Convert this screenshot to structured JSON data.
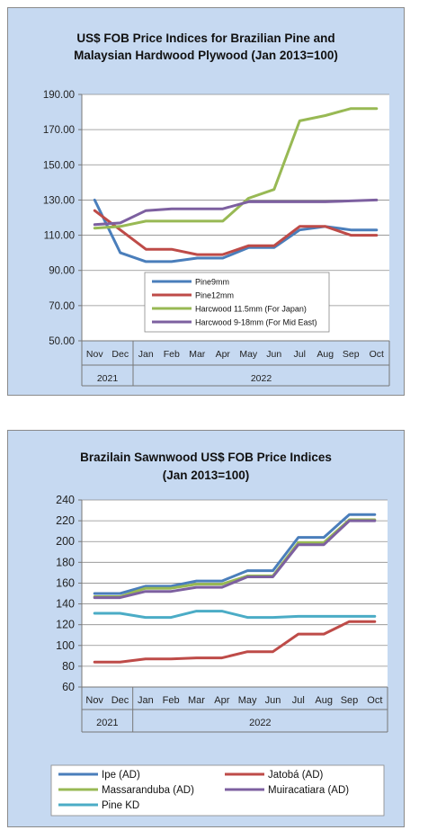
{
  "chart_data": [
    {
      "type": "line",
      "title_line1": "US$ FOB Price Indices for Brazilian Pine and",
      "title_line2": "Malaysian Hardwood Plywood (Jan 2013=100)",
      "ylim": [
        50,
        190
      ],
      "yticks": [
        "50.00",
        "70.00",
        "90.00",
        "110.00",
        "130.00",
        "150.00",
        "170.00",
        "190.00"
      ],
      "categories": [
        "Nov",
        "Dec",
        "Jan",
        "Feb",
        "Mar",
        "Apr",
        "May",
        "Jun",
        "Jul",
        "Aug",
        "Sep",
        "Oct"
      ],
      "year_groups": [
        {
          "label": "2021",
          "span": 2
        },
        {
          "label": "2022",
          "span": 10
        }
      ],
      "grid": "horizontal",
      "legend_position": "lower-center-inside",
      "series": [
        {
          "name": "Pine9mm",
          "color": "#4a7ebb",
          "values": [
            130,
            100,
            95,
            95,
            97,
            97,
            103,
            103,
            113,
            115,
            113,
            113
          ]
        },
        {
          "name": "Pine12mm",
          "color": "#be4b48",
          "values": [
            124,
            113,
            102,
            102,
            99,
            99,
            104,
            104,
            115,
            115,
            110,
            110
          ]
        },
        {
          "name": "Harcwood 11.5mm (For Japan)",
          "color": "#98b954",
          "values": [
            114,
            115,
            118,
            118,
            118,
            118,
            131,
            136,
            175,
            178,
            182,
            182
          ]
        },
        {
          "name": "Harcwood 9-18mm (For Mid East)",
          "color": "#7d60a0",
          "values": [
            116,
            117,
            124,
            125,
            125,
            125,
            129,
            129,
            129,
            129,
            129.5,
            130
          ]
        }
      ]
    },
    {
      "type": "line",
      "title_line1": "Brazilain Sawnwood US$ FOB Price Indices",
      "title_line2": "(Jan 2013=100)",
      "ylim": [
        60,
        240
      ],
      "yticks": [
        "60",
        "80",
        "100",
        "120",
        "140",
        "160",
        "180",
        "200",
        "220",
        "240"
      ],
      "categories": [
        "Nov",
        "Dec",
        "Jan",
        "Feb",
        "Mar",
        "Apr",
        "May",
        "Jun",
        "Jul",
        "Aug",
        "Sep",
        "Oct"
      ],
      "year_groups": [
        {
          "label": "2021",
          "span": 2
        },
        {
          "label": "2022",
          "span": 10
        }
      ],
      "grid": "horizontal",
      "legend_position": "bottom",
      "series": [
        {
          "name": "Ipe (AD)",
          "color": "#4a7ebb",
          "values": [
            150,
            150,
            157,
            157,
            162,
            162,
            172,
            172,
            204,
            204,
            226,
            226
          ]
        },
        {
          "name": "Jatobá (AD)",
          "color": "#be4b48",
          "values": [
            84,
            84,
            87,
            87,
            88,
            88,
            94,
            94,
            111,
            111,
            123,
            123
          ]
        },
        {
          "name": "Massaranduba (AD)",
          "color": "#98b954",
          "values": [
            147,
            147,
            155,
            155,
            159,
            159,
            167,
            167,
            199,
            199,
            221,
            221
          ]
        },
        {
          "name": "Muiracatiara (AD)",
          "color": "#7d60a0",
          "values": [
            146,
            146,
            152,
            152,
            156,
            156,
            166,
            166,
            197,
            197,
            220,
            220
          ]
        },
        {
          "name": "Pine KD",
          "color": "#4bacc6",
          "values": [
            131,
            131,
            127,
            127,
            133,
            133,
            127,
            127,
            128,
            128,
            128,
            128
          ]
        }
      ]
    }
  ]
}
